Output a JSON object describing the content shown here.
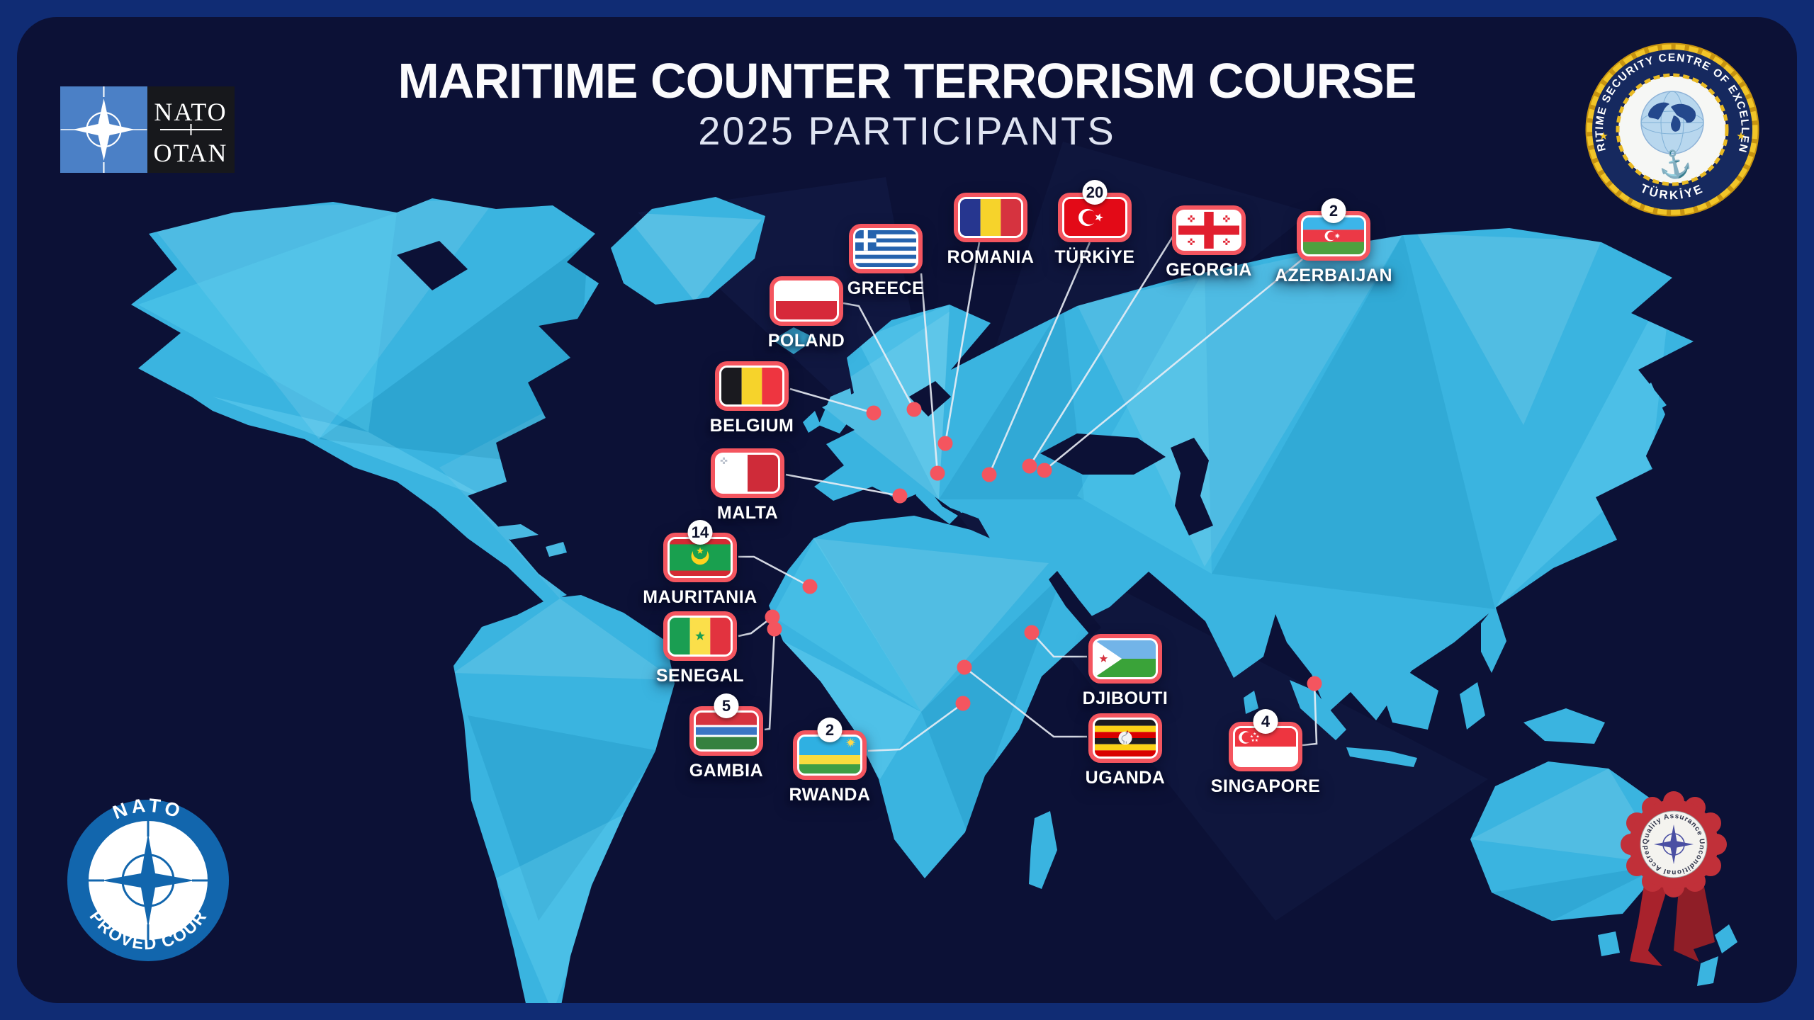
{
  "title": "MARITIME COUNTER TERRORISM COURSE",
  "subtitle": "2025 PARTICIPANTS",
  "nato_flag_logo": {
    "line1": "NATO",
    "line2": "OTAN"
  },
  "mscoe_emblem": {
    "ring_text": "MARITIME SECURITY CENTRE OF EXCELLENCE",
    "country": "TÜRKİYE",
    "star_icon": "★",
    "anchor_icon": "⚓"
  },
  "nato_approved_emblem": {
    "top_text": "NATO",
    "bottom_text": "APPROVED COURSE"
  },
  "accreditation_ribbon": {
    "ring_text": "Quality Assurance Unconditional Accreditation"
  },
  "participants": [
    {
      "id": "greece",
      "name": "GREECE",
      "count": null
    },
    {
      "id": "poland",
      "name": "POLAND",
      "count": null
    },
    {
      "id": "romania",
      "name": "ROMANIA",
      "count": null
    },
    {
      "id": "turkiye",
      "name": "TÜRKİYE",
      "count": 20
    },
    {
      "id": "georgia",
      "name": "GEORGIA",
      "count": null
    },
    {
      "id": "azerbaijan",
      "name": "AZERBAIJAN",
      "count": 2
    },
    {
      "id": "belgium",
      "name": "BELGIUM",
      "count": null
    },
    {
      "id": "malta",
      "name": "MALTA",
      "count": null
    },
    {
      "id": "mauritania",
      "name": "MAURITANIA",
      "count": 14
    },
    {
      "id": "senegal",
      "name": "SENEGAL",
      "count": null
    },
    {
      "id": "gambia",
      "name": "GAMBIA",
      "count": 5
    },
    {
      "id": "rwanda",
      "name": "RWANDA",
      "count": 2
    },
    {
      "id": "djibouti",
      "name": "DJIBOUTI",
      "count": null
    },
    {
      "id": "uganda",
      "name": "UGANDA",
      "count": null
    },
    {
      "id": "singapore",
      "name": "SINGAPORE",
      "count": 4
    }
  ],
  "colors": {
    "background": "#0c1136",
    "frame": "#102c74",
    "land": "#3ab4e0",
    "accent_red": "#f4555f",
    "gold": "#e8b923",
    "nato_blue": "#4b80c6",
    "approved_blue": "#1266ad",
    "ribbon_red": "#c13039"
  }
}
